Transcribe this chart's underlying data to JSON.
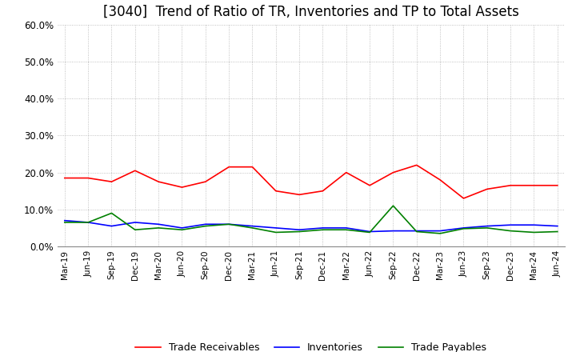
{
  "title": "[3040]  Trend of Ratio of TR, Inventories and TP to Total Assets",
  "xlabels": [
    "Mar-19",
    "Jun-19",
    "Sep-19",
    "Dec-19",
    "Mar-20",
    "Jun-20",
    "Sep-20",
    "Dec-20",
    "Mar-21",
    "Jun-21",
    "Sep-21",
    "Dec-21",
    "Mar-22",
    "Jun-22",
    "Sep-22",
    "Dec-22",
    "Mar-23",
    "Jun-23",
    "Sep-23",
    "Dec-23",
    "Mar-24",
    "Jun-24"
  ],
  "trade_receivables": [
    0.185,
    0.185,
    0.175,
    0.205,
    0.175,
    0.16,
    0.175,
    0.215,
    0.215,
    0.15,
    0.14,
    0.15,
    0.2,
    0.165,
    0.2,
    0.22,
    0.18,
    0.13,
    0.155,
    0.165,
    0.165,
    0.165
  ],
  "inventories": [
    0.07,
    0.065,
    0.055,
    0.065,
    0.06,
    0.05,
    0.06,
    0.06,
    0.055,
    0.05,
    0.045,
    0.05,
    0.05,
    0.04,
    0.042,
    0.042,
    0.042,
    0.05,
    0.055,
    0.058,
    0.058,
    0.055
  ],
  "trade_payables": [
    0.065,
    0.065,
    0.09,
    0.045,
    0.05,
    0.045,
    0.055,
    0.06,
    0.05,
    0.038,
    0.04,
    0.045,
    0.045,
    0.038,
    0.11,
    0.04,
    0.035,
    0.048,
    0.05,
    0.042,
    0.038,
    0.04
  ],
  "ylim": [
    0.0,
    0.6
  ],
  "yticks": [
    0.0,
    0.1,
    0.2,
    0.3,
    0.4,
    0.5,
    0.6
  ],
  "tr_color": "#ff0000",
  "inv_color": "#0000ff",
  "tp_color": "#008000",
  "background_color": "#ffffff",
  "grid_color": "#b0b0b0",
  "title_fontsize": 12,
  "legend_labels": [
    "Trade Receivables",
    "Inventories",
    "Trade Payables"
  ]
}
